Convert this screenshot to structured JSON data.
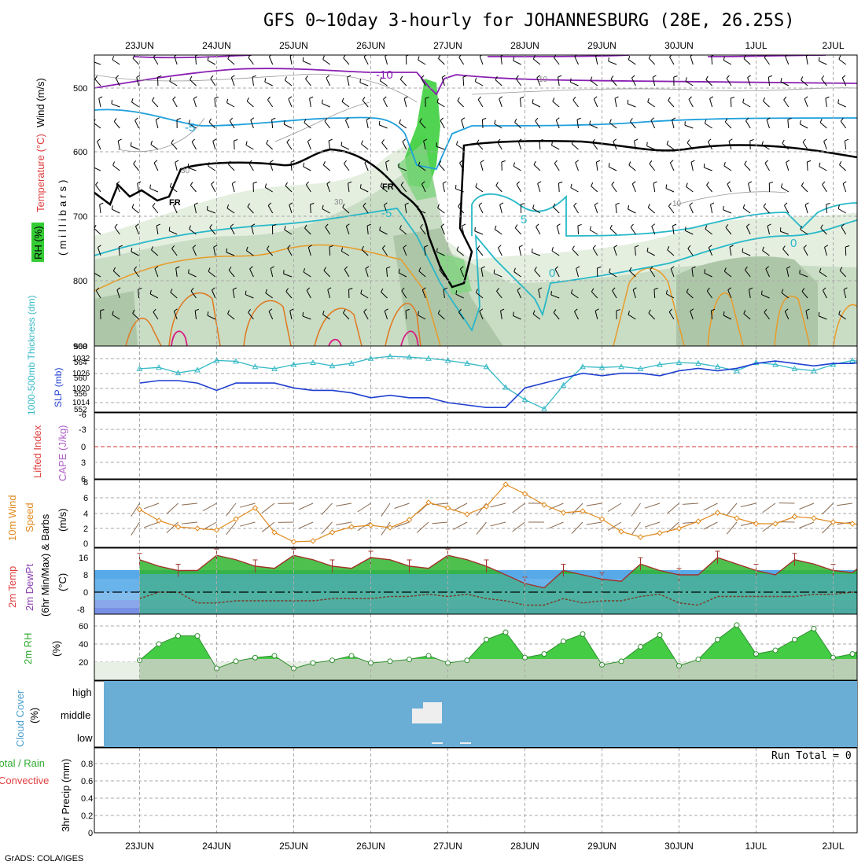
{
  "title": "GFS 0~10day 3-hourly for JOHANNESBURG (28E, 26.25S)",
  "footer": "GrADS: COLA/IGES",
  "dates": [
    "23JUN",
    "24JUN",
    "25JUN",
    "26JUN",
    "27JUN",
    "28JUN",
    "29JUN",
    "30JUN",
    "1JUL",
    "2JUL"
  ],
  "colors": {
    "rh_green": "#33cc33",
    "temp_purple": "#8a1fb2",
    "temp_blue": "#1ea0dc",
    "temp_cyan": "#26b8c8",
    "freezing": "#000000",
    "warm_orange": "#e89b28",
    "warm_pink": "#d81b83",
    "slp": "#1f3fd0",
    "thickness": "#35b9c6",
    "wind10m": "#e08a1e",
    "temp_fill": "#2fb52f",
    "dew_fill": "#a05cd8",
    "cloud": "#6aaed6",
    "cloud_patch": "#eeeeee",
    "lifted_zero": "#d33333"
  },
  "panels": {
    "upper": {
      "ylabel_wind": "Wind (m/s)",
      "ylabel_temp": "Temperature (°C)",
      "ylabel_rh": "RH (%)",
      "ylabel_mb": "(millibars)",
      "ticks": [
        "500",
        "600",
        "700",
        "800",
        "900"
      ],
      "contour_labels": [
        "-10",
        "-5",
        "-5",
        "5",
        "0",
        "0",
        "FR",
        "FR",
        "30",
        "30",
        "10",
        "10"
      ]
    },
    "slp": {
      "ylabel_thick": "1000-500mb Thickness (dm)",
      "ylabel_slp": "SLP (mb)",
      "thick_ticks": [
        "568",
        "564",
        "560",
        "556",
        "552"
      ],
      "slp_ticks": [
        "1032",
        "1026",
        "1020",
        "1014"
      ]
    },
    "li": {
      "ylabel_li": "Lifted Index",
      "ylabel_cape": "CAPE (J/kg)",
      "ticks": [
        "-6",
        "-3",
        "0",
        "3",
        "6"
      ]
    },
    "wind10": {
      "ylabel_a": "10m Wind",
      "ylabel_b": "Speed",
      "ylabel_c": "(m/s)",
      "ylabel_d": "& Barbs",
      "ticks": [
        "8",
        "6",
        "4",
        "2",
        "0"
      ]
    },
    "temp2m": {
      "ylabel_a": "2m Temp",
      "ylabel_b": "2m DewPt",
      "ylabel_c": "(6hr Min/Max)",
      "ylabel_d": "(°C)",
      "ticks": [
        "16",
        "8",
        "0",
        "-8"
      ]
    },
    "rh2m": {
      "ylabel_a": "2m RH",
      "ylabel_b": "(%)",
      "ticks": [
        "60",
        "40",
        "20"
      ]
    },
    "cloud": {
      "ylabel_a": "Cloud Cover",
      "ylabel_b": "(%)",
      "levels": [
        "high",
        "middle",
        "low"
      ]
    },
    "precip": {
      "ylabel_a": "Total / Rain",
      "ylabel_b": "Convective",
      "ylabel_c": "3hr Precip (mm)",
      "ticks": [
        "0.8",
        "0.6",
        "0.4",
        "0.2",
        "0"
      ],
      "run_total": "Run Total = 0"
    }
  },
  "chart_data": [
    {
      "type": "line",
      "title": "SLP (mb)",
      "x": [
        22.0,
        22.25,
        22.5,
        22.75,
        23.0,
        23.25,
        23.5,
        23.75,
        24.0,
        24.25,
        24.5,
        24.75,
        25.0,
        25.25,
        25.5,
        25.75,
        26.0,
        26.25,
        26.5,
        26.75,
        27.0,
        27.25,
        27.5,
        27.75,
        28.0,
        28.25,
        28.5,
        28.75,
        29.0,
        29.25,
        29.5,
        29.75,
        30.0,
        30.25,
        30.5,
        30.75,
        31.0,
        31.25,
        31.5,
        31.75,
        32.0,
        32.25
      ],
      "series": [
        {
          "name": "SLP",
          "values": [
            1022,
            1023,
            1023,
            1022,
            1019,
            1022,
            1022,
            1022,
            1020,
            1019,
            1019,
            1018,
            1016,
            1017,
            1016,
            1016,
            1014,
            1013,
            1012,
            1012,
            1020,
            1022,
            1024,
            1026,
            1025,
            1026,
            1026,
            1025,
            1027,
            1028,
            1027,
            1028,
            1030,
            1031,
            1030,
            1029,
            1030,
            1030,
            1031,
            1029,
            1028,
            1028
          ]
        }
      ]
    },
    {
      "type": "line",
      "title": "1000-500mb Thickness (dm)",
      "x": [
        22.0,
        22.25,
        22.5,
        22.75,
        23.0,
        23.25,
        23.5,
        23.75,
        24.0,
        24.25,
        24.5,
        24.75,
        25.0,
        25.25,
        25.5,
        25.75,
        26.0,
        26.25,
        26.5,
        26.75,
        27.0,
        27.25,
        27.5,
        27.75,
        28.0,
        28.25,
        28.5,
        28.75,
        29.0,
        29.25,
        29.5,
        29.75,
        30.0,
        30.25,
        30.5,
        30.75,
        31.0,
        31.25,
        31.5,
        31.75,
        32.0,
        32.25
      ],
      "series": [
        {
          "name": "Thickness",
          "values": [
            562.5,
            562.8,
            561.5,
            562.2,
            564.5,
            564.3,
            563.0,
            562.5,
            563.5,
            564.0,
            563.2,
            563.8,
            565.0,
            565.5,
            565.3,
            565.0,
            564.5,
            563.8,
            563.0,
            558.0,
            555.0,
            552.8,
            558.5,
            563.0,
            562.8,
            563.0,
            562.5,
            563.5,
            564.0,
            563.8,
            563.0,
            562.0,
            564.0,
            563.5,
            562.5,
            562.0,
            563.5,
            564.5,
            563.8,
            563.0,
            563.2,
            563.0
          ]
        }
      ]
    },
    {
      "type": "line",
      "title": "10m Wind Speed (m/s)",
      "x": [
        22.0,
        22.25,
        22.5,
        22.75,
        23.0,
        23.25,
        23.5,
        23.75,
        24.0,
        24.25,
        24.5,
        24.75,
        25.0,
        25.25,
        25.5,
        25.75,
        26.0,
        26.25,
        26.5,
        26.75,
        27.0,
        27.25,
        27.5,
        27.75,
        28.0,
        28.25,
        28.5,
        28.75,
        29.0,
        29.25,
        29.5,
        29.75,
        30.0,
        30.25,
        30.5,
        30.75,
        31.0,
        31.25,
        31.5,
        31.75,
        32.0,
        32.25
      ],
      "ylim": [
        0,
        8
      ],
      "series": [
        {
          "name": "Wind",
          "values": [
            4.4,
            3.0,
            2.2,
            2.0,
            1.8,
            3.2,
            4.6,
            1.5,
            0.3,
            0.4,
            1.5,
            2.2,
            2.4,
            2.1,
            3.1,
            5.3,
            4.6,
            3.8,
            4.8,
            7.6,
            6.4,
            5.0,
            4.0,
            4.2,
            3.2,
            1.6,
            0.9,
            1.4,
            2.0,
            2.9,
            4.0,
            3.3,
            2.6,
            2.6,
            3.5,
            3.3,
            2.8,
            2.6,
            2.3,
            2.4,
            1.7,
            1.5
          ]
        }
      ]
    },
    {
      "type": "area",
      "title": "2m Temp / 2m DewPt (°C)",
      "x": [
        22.0,
        22.25,
        22.5,
        22.75,
        23.0,
        23.25,
        23.5,
        23.75,
        24.0,
        24.25,
        24.5,
        24.75,
        25.0,
        25.25,
        25.5,
        25.75,
        26.0,
        26.25,
        26.5,
        26.75,
        27.0,
        27.25,
        27.5,
        27.75,
        28.0,
        28.25,
        28.5,
        28.75,
        29.0,
        29.25,
        29.5,
        29.75,
        30.0,
        30.25,
        30.5,
        30.75,
        31.0,
        31.25,
        31.5,
        31.75,
        32.0,
        32.25
      ],
      "series": [
        {
          "name": "2m Temp",
          "values": [
            15,
            12,
            10,
            10,
            17,
            15,
            12,
            11,
            17,
            15,
            12,
            11,
            16,
            15,
            12,
            11,
            17,
            15,
            12,
            8,
            4,
            2,
            10,
            8,
            6,
            5,
            13,
            10,
            8,
            8,
            16,
            13,
            10,
            8,
            15,
            13,
            10,
            9,
            16,
            13,
            10,
            9
          ]
        },
        {
          "name": "2m DewPt",
          "values": [
            -3,
            0,
            0,
            -5,
            -5,
            -4,
            -4,
            -4,
            -4,
            -4,
            -3,
            -3,
            -3,
            -2,
            -2,
            -1,
            -2,
            -1,
            -3,
            -4,
            -6,
            -6,
            -3,
            -5,
            -4,
            -4,
            -2,
            -1,
            -5,
            -6,
            -2,
            -2,
            -2,
            -2,
            -2,
            -1,
            -1,
            0,
            -1,
            -1,
            0,
            0
          ]
        }
      ]
    },
    {
      "type": "area",
      "title": "2m RH (%)",
      "x": [
        22.0,
        22.25,
        22.5,
        22.75,
        23.0,
        23.25,
        23.5,
        23.75,
        24.0,
        24.25,
        24.5,
        24.75,
        25.0,
        25.25,
        25.5,
        25.75,
        26.0,
        26.25,
        26.5,
        26.75,
        27.0,
        27.25,
        27.5,
        27.75,
        28.0,
        28.25,
        28.5,
        28.75,
        29.0,
        29.25,
        29.5,
        29.75,
        30.0,
        30.25,
        30.5,
        30.75,
        31.0,
        31.25,
        31.5,
        31.75,
        32.0,
        32.25
      ],
      "series": [
        {
          "name": "2m RH",
          "values": [
            27,
            45,
            54,
            54,
            18,
            26,
            30,
            32,
            18,
            24,
            27,
            32,
            24,
            26,
            28,
            32,
            24,
            27,
            50,
            58,
            30,
            34,
            48,
            56,
            22,
            26,
            42,
            55,
            21,
            28,
            50,
            66,
            34,
            38,
            50,
            62,
            30,
            34,
            44,
            52,
            32,
            50
          ]
        }
      ]
    },
    {
      "type": "bar",
      "title": "3hr Precip (mm)",
      "xlabel": "",
      "ylabel": "3hr Precip (mm)",
      "ylim": [
        0,
        1
      ],
      "categories": [],
      "values": []
    }
  ]
}
